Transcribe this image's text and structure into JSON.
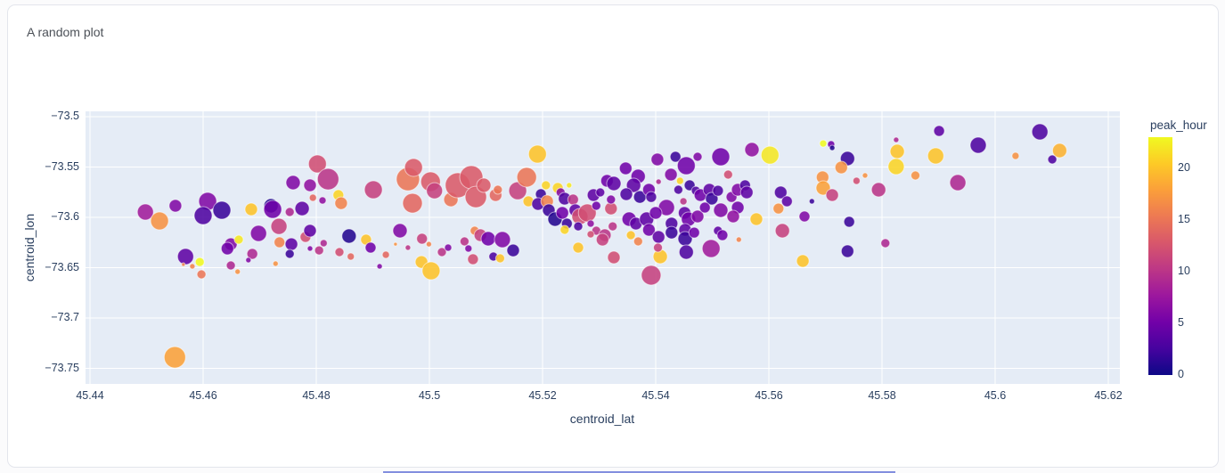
{
  "card": {
    "title": "A random plot"
  },
  "chart_data": {
    "type": "scatter",
    "title": "A random plot",
    "xlabel": "centroid_lat",
    "ylabel": "centroid_lon",
    "xlim": [
      45.439,
      45.622
    ],
    "ylim": [
      -73.766,
      -73.495
    ],
    "grid": true,
    "plot_bg": "#e5ecf6",
    "grid_color": "#ffffff",
    "xtick_vals": [
      45.44,
      45.46,
      45.48,
      45.5,
      45.52,
      45.54,
      45.56,
      45.58,
      45.6,
      45.62
    ],
    "xtick_labels": [
      "45.44",
      "45.46",
      "45.48",
      "45.5",
      "45.52",
      "45.54",
      "45.56",
      "45.58",
      "45.6",
      "45.62"
    ],
    "ytick_vals": [
      -73.5,
      -73.55,
      -73.6,
      -73.65,
      -73.7,
      -73.75
    ],
    "ytick_labels": [
      "−73.5",
      "−73.55",
      "−73.6",
      "−73.65",
      "−73.7",
      "−73.75"
    ],
    "color": {
      "label": "peak_hour",
      "min": 0,
      "max": 23,
      "ticks": [
        0,
        5,
        10,
        15,
        20
      ],
      "colorscale": [
        "#0d0887",
        "#46039f",
        "#7201a8",
        "#9c179e",
        "#bd3786",
        "#d8576b",
        "#ed7953",
        "#fb9f3a",
        "#fdca26",
        "#f0f921"
      ]
    },
    "point_format": [
      "centroid_lat",
      "centroid_lon",
      "marker_radius_px",
      "peak_hour"
    ],
    "points": [
      [
        45.4498,
        -73.5947,
        9,
        8
      ],
      [
        45.4523,
        -73.6035,
        10,
        17
      ],
      [
        45.4551,
        -73.5885,
        7,
        6
      ],
      [
        45.4608,
        -73.5841,
        10,
        6
      ],
      [
        45.46,
        -73.5982,
        10,
        3
      ],
      [
        45.4633,
        -73.5929,
        10,
        2
      ],
      [
        45.4685,
        -73.592,
        7,
        20
      ],
      [
        45.472,
        -73.5885,
        8,
        1
      ],
      [
        45.4723,
        -73.592,
        10,
        5
      ],
      [
        45.4759,
        -73.5655,
        8,
        6
      ],
      [
        45.4789,
        -73.5681,
        7,
        7
      ],
      [
        45.4802,
        -73.5469,
        10,
        12
      ],
      [
        45.4821,
        -73.562,
        12,
        10
      ],
      [
        45.4794,
        -73.5805,
        4,
        14
      ],
      [
        45.4811,
        -73.5832,
        4,
        7
      ],
      [
        45.4839,
        -73.5779,
        6,
        21
      ],
      [
        45.4844,
        -73.5859,
        7,
        16
      ],
      [
        45.4753,
        -73.5947,
        5,
        9
      ],
      [
        45.4775,
        -73.5912,
        8,
        4
      ],
      [
        45.4698,
        -73.6159,
        9,
        6
      ],
      [
        45.4734,
        -73.6089,
        9,
        11
      ],
      [
        45.4735,
        -73.6248,
        6,
        16
      ],
      [
        45.4756,
        -73.6266,
        7,
        4
      ],
      [
        45.4753,
        -73.6363,
        5,
        2
      ],
      [
        45.4781,
        -73.6195,
        6,
        12
      ],
      [
        45.4789,
        -73.6133,
        7,
        4
      ],
      [
        45.4813,
        -73.6257,
        4,
        9
      ],
      [
        45.4789,
        -73.631,
        3,
        6
      ],
      [
        45.4805,
        -73.6328,
        5,
        10
      ],
      [
        45.4841,
        -73.6345,
        5,
        12
      ],
      [
        45.4861,
        -73.6389,
        4,
        14
      ],
      [
        45.4858,
        -73.6186,
        8,
        1
      ],
      [
        45.4649,
        -73.6266,
        7,
        6
      ],
      [
        45.4643,
        -73.631,
        7,
        5
      ],
      [
        45.4663,
        -73.6221,
        5,
        22
      ],
      [
        45.4687,
        -73.6363,
        6,
        9
      ],
      [
        45.468,
        -73.6425,
        3,
        6
      ],
      [
        45.4569,
        -73.6389,
        9,
        4
      ],
      [
        45.4565,
        -73.6469,
        2,
        16
      ],
      [
        45.4581,
        -73.6487,
        3,
        16
      ],
      [
        45.4594,
        -73.6443,
        5,
        23
      ],
      [
        45.4597,
        -73.6566,
        5,
        15
      ],
      [
        45.4649,
        -73.6478,
        5,
        9
      ],
      [
        45.4661,
        -73.654,
        3,
        17
      ],
      [
        45.4728,
        -73.646,
        3,
        17
      ],
      [
        45.455,
        -73.739,
        12,
        18
      ],
      [
        45.4901,
        -73.5726,
        10,
        11
      ],
      [
        45.4962,
        -73.562,
        13,
        15
      ],
      [
        45.4972,
        -73.5504,
        10,
        13
      ],
      [
        45.5002,
        -73.5646,
        11,
        13
      ],
      [
        45.5009,
        -73.5735,
        9,
        11
      ],
      [
        45.497,
        -73.5859,
        11,
        14
      ],
      [
        45.5038,
        -73.5823,
        8,
        15
      ],
      [
        45.505,
        -73.5681,
        14,
        13
      ],
      [
        45.5074,
        -73.5602,
        13,
        13
      ],
      [
        45.5082,
        -73.5797,
        12,
        13
      ],
      [
        45.5096,
        -73.5681,
        8,
        13
      ],
      [
        45.5117,
        -73.5779,
        7,
        14
      ],
      [
        45.5121,
        -73.5726,
        5,
        15
      ],
      [
        45.5156,
        -73.5735,
        10,
        11
      ],
      [
        45.5172,
        -73.5602,
        11,
        15
      ],
      [
        45.5191,
        -73.5372,
        10,
        20
      ],
      [
        45.5206,
        -73.5681,
        5,
        21
      ],
      [
        45.5197,
        -73.577,
        6,
        2
      ],
      [
        45.5175,
        -73.5841,
        6,
        20
      ],
      [
        45.5192,
        -73.5867,
        7,
        3
      ],
      [
        45.5208,
        -73.5841,
        7,
        16
      ],
      [
        45.5227,
        -73.5708,
        6,
        21
      ],
      [
        45.5232,
        -73.5752,
        5,
        6
      ],
      [
        45.5247,
        -73.5681,
        3,
        22
      ],
      [
        45.5239,
        -73.5814,
        7,
        3
      ],
      [
        45.5254,
        -73.5823,
        6,
        10
      ],
      [
        45.5211,
        -73.5929,
        7,
        2
      ],
      [
        45.5222,
        -73.6018,
        8,
        1
      ],
      [
        45.5235,
        -73.5956,
        7,
        5
      ],
      [
        45.5243,
        -73.6062,
        6,
        2
      ],
      [
        45.5258,
        -73.5929,
        7,
        4
      ],
      [
        45.5266,
        -73.5991,
        9,
        12
      ],
      [
        45.5279,
        -73.5956,
        10,
        12
      ],
      [
        45.529,
        -73.5779,
        7,
        4
      ],
      [
        45.5302,
        -73.5752,
        5,
        4
      ],
      [
        45.5314,
        -73.5637,
        7,
        5
      ],
      [
        45.5326,
        -73.5664,
        8,
        4
      ],
      [
        45.5295,
        -73.5885,
        5,
        5
      ],
      [
        45.5321,
        -73.5912,
        7,
        12
      ],
      [
        45.5321,
        -73.5823,
        5,
        6
      ],
      [
        45.5239,
        -73.6124,
        5,
        21
      ],
      [
        45.5263,
        -73.6089,
        5,
        3
      ],
      [
        45.5285,
        -73.6062,
        4,
        7
      ],
      [
        45.5295,
        -73.6133,
        5,
        10
      ],
      [
        45.531,
        -73.6177,
        7,
        10
      ],
      [
        45.4948,
        -73.6133,
        8,
        6
      ],
      [
        45.4888,
        -73.6221,
        6,
        20
      ],
      [
        45.4896,
        -73.6301,
        6,
        5
      ],
      [
        45.4923,
        -73.6372,
        4,
        14
      ],
      [
        45.494,
        -73.6266,
        2,
        17
      ],
      [
        45.4962,
        -73.6301,
        3,
        10
      ],
      [
        45.4987,
        -73.6212,
        6,
        11
      ],
      [
        45.4999,
        -73.6266,
        3,
        16
      ],
      [
        45.4986,
        -73.6443,
        7,
        20
      ],
      [
        45.5003,
        -73.6531,
        10,
        20
      ],
      [
        45.4912,
        -73.6487,
        3,
        6
      ],
      [
        45.5022,
        -73.6345,
        5,
        10
      ],
      [
        45.5033,
        -73.6301,
        4,
        6
      ],
      [
        45.5062,
        -73.6239,
        5,
        10
      ],
      [
        45.5069,
        -73.631,
        4,
        6
      ],
      [
        45.508,
        -73.6133,
        5,
        16
      ],
      [
        45.509,
        -73.6177,
        7,
        11
      ],
      [
        45.5104,
        -73.6212,
        8,
        5
      ],
      [
        45.5077,
        -73.6416,
        6,
        12
      ],
      [
        45.5113,
        -73.6389,
        5,
        3
      ],
      [
        45.5129,
        -73.6221,
        9,
        6
      ],
      [
        45.5148,
        -73.6328,
        7,
        2
      ],
      [
        45.5125,
        -73.6407,
        5,
        20
      ],
      [
        45.5263,
        -73.6301,
        6,
        20
      ],
      [
        45.5285,
        -73.6168,
        4,
        12
      ],
      [
        45.5306,
        -73.6221,
        7,
        11
      ],
      [
        45.5326,
        -73.6398,
        7,
        12
      ],
      [
        45.5324,
        -73.6089,
        5,
        10
      ],
      [
        45.5403,
        -73.5425,
        7,
        6
      ],
      [
        45.5435,
        -73.5398,
        6,
        2
      ],
      [
        45.5454,
        -73.5487,
        10,
        5
      ],
      [
        45.5474,
        -73.5398,
        5,
        6
      ],
      [
        45.5515,
        -73.5398,
        10,
        5
      ],
      [
        45.557,
        -73.5327,
        8,
        7
      ],
      [
        45.5602,
        -73.5381,
        10,
        22
      ],
      [
        45.5696,
        -73.5266,
        4,
        23
      ],
      [
        45.571,
        -73.5274,
        4,
        5
      ],
      [
        45.5712,
        -73.531,
        3,
        1
      ],
      [
        45.5739,
        -73.5416,
        8,
        2
      ],
      [
        45.5728,
        -73.5504,
        7,
        17
      ],
      [
        45.5695,
        -73.5602,
        7,
        17
      ],
      [
        45.5696,
        -73.5708,
        8,
        18
      ],
      [
        45.5712,
        -73.5779,
        7,
        11
      ],
      [
        45.5755,
        -73.5637,
        4,
        12
      ],
      [
        45.577,
        -73.5584,
        3,
        17
      ],
      [
        45.5794,
        -73.5726,
        8,
        10
      ],
      [
        45.5676,
        -73.5841,
        3,
        2
      ],
      [
        45.5621,
        -73.5752,
        7,
        3
      ],
      [
        45.5632,
        -73.5841,
        6,
        4
      ],
      [
        45.5617,
        -73.5912,
        6,
        17
      ],
      [
        45.5663,
        -73.5991,
        6,
        6
      ],
      [
        45.5624,
        -73.6133,
        8,
        11
      ],
      [
        45.566,
        -73.6434,
        7,
        20
      ],
      [
        45.5742,
        -73.6044,
        6,
        2
      ],
      [
        45.5739,
        -73.6336,
        7,
        2
      ],
      [
        45.5806,
        -73.6257,
        5,
        9
      ],
      [
        45.5578,
        -73.6018,
        7,
        20
      ],
      [
        45.5547,
        -73.6221,
        3,
        16
      ],
      [
        45.5498,
        -73.631,
        10,
        8
      ],
      [
        45.5408,
        -73.6389,
        8,
        20
      ],
      [
        45.5392,
        -73.6575,
        11,
        11
      ],
      [
        45.5347,
        -73.5513,
        7,
        5
      ],
      [
        45.5369,
        -73.5593,
        8,
        5
      ],
      [
        45.5361,
        -73.5681,
        8,
        4
      ],
      [
        45.5348,
        -73.577,
        7,
        3
      ],
      [
        45.5372,
        -73.5797,
        7,
        2
      ],
      [
        45.5388,
        -73.5726,
        7,
        5
      ],
      [
        45.5392,
        -73.5797,
        6,
        3
      ],
      [
        45.5405,
        -73.5646,
        3,
        9
      ],
      [
        45.5427,
        -73.5575,
        7,
        6
      ],
      [
        45.5443,
        -73.5637,
        4,
        21
      ],
      [
        45.544,
        -73.5726,
        5,
        3
      ],
      [
        45.546,
        -73.5681,
        6,
        2
      ],
      [
        45.5419,
        -73.5903,
        9,
        6
      ],
      [
        45.5449,
        -73.5841,
        4,
        10
      ],
      [
        45.5471,
        -73.5735,
        5,
        3
      ],
      [
        45.5479,
        -73.5779,
        7,
        5
      ],
      [
        45.5495,
        -73.5726,
        7,
        4
      ],
      [
        45.5499,
        -73.5814,
        7,
        2
      ],
      [
        45.551,
        -73.5735,
        6,
        3
      ],
      [
        45.5451,
        -73.5956,
        7,
        4
      ],
      [
        45.5458,
        -73.6018,
        8,
        5
      ],
      [
        45.5474,
        -73.5991,
        7,
        6
      ],
      [
        45.5487,
        -73.5903,
        6,
        5
      ],
      [
        45.5515,
        -73.5929,
        8,
        6
      ],
      [
        45.5528,
        -73.5575,
        5,
        12
      ],
      [
        45.5534,
        -73.5797,
        6,
        6
      ],
      [
        45.5545,
        -73.5726,
        7,
        6
      ],
      [
        45.5558,
        -73.5681,
        6,
        3
      ],
      [
        45.5561,
        -73.5752,
        7,
        4
      ],
      [
        45.5545,
        -73.5903,
        7,
        5
      ],
      [
        45.5537,
        -73.5991,
        7,
        7
      ],
      [
        45.5353,
        -73.6018,
        8,
        5
      ],
      [
        45.5365,
        -73.6062,
        7,
        4
      ],
      [
        45.5384,
        -73.6018,
        8,
        4
      ],
      [
        45.54,
        -73.5956,
        7,
        5
      ],
      [
        45.5356,
        -73.6177,
        5,
        20
      ],
      [
        45.5369,
        -73.6239,
        5,
        16
      ],
      [
        45.5388,
        -73.6124,
        7,
        5
      ],
      [
        45.5405,
        -73.6195,
        7,
        4
      ],
      [
        45.5404,
        -73.6301,
        5,
        11
      ],
      [
        45.5428,
        -73.6062,
        7,
        3
      ],
      [
        45.5428,
        -73.6151,
        7,
        2
      ],
      [
        45.5452,
        -73.6124,
        7,
        4
      ],
      [
        45.5452,
        -73.6212,
        8,
        2
      ],
      [
        45.5454,
        -73.6345,
        8,
        3
      ],
      [
        45.5468,
        -73.6151,
        6,
        5
      ],
      [
        45.551,
        -73.6133,
        5,
        4
      ],
      [
        45.5518,
        -73.6177,
        6,
        5
      ],
      [
        45.5901,
        -73.5142,
        6,
        4
      ],
      [
        45.5825,
        -73.523,
        3,
        9
      ],
      [
        45.5827,
        -73.5345,
        8,
        20
      ],
      [
        45.5825,
        -73.5496,
        9,
        21
      ],
      [
        45.5895,
        -73.5389,
        9,
        20
      ],
      [
        45.597,
        -73.5283,
        9,
        3
      ],
      [
        45.5859,
        -73.5584,
        5,
        17
      ],
      [
        45.5934,
        -73.5655,
        9,
        9
      ],
      [
        45.6079,
        -73.515,
        9,
        3
      ],
      [
        45.6036,
        -73.5389,
        4,
        17
      ],
      [
        45.6114,
        -73.5336,
        8,
        19
      ],
      [
        45.6101,
        -73.5425,
        5,
        3
      ]
    ]
  }
}
